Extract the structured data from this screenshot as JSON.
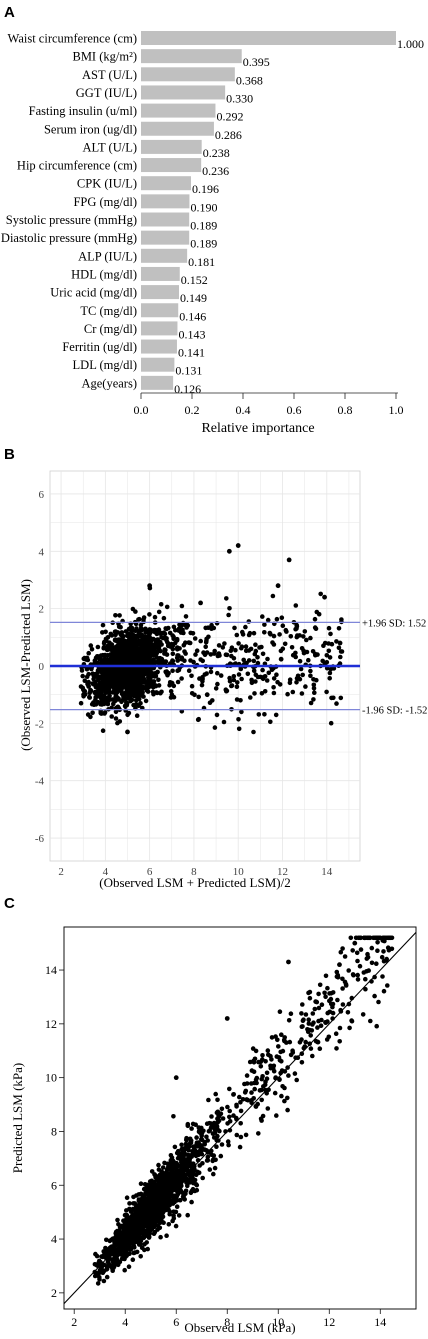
{
  "panels": {
    "a": {
      "letter": "A"
    },
    "b": {
      "letter": "B"
    },
    "c": {
      "letter": "C"
    }
  },
  "colors": {
    "bar": "#c0c0c0",
    "point": "#000000",
    "mean_line": "#1f2fd6",
    "sd_line": "#7f86d8",
    "grid": "#e6e6e6"
  },
  "chart_data": [
    {
      "panel": "A",
      "type": "bar",
      "orientation": "horizontal",
      "title": "",
      "xlabel": "Relative importance",
      "ylabel": "",
      "xlim": [
        0.0,
        1.0
      ],
      "xticks": [
        "0.0",
        "0.2",
        "0.4",
        "0.6",
        "0.8",
        "1.0"
      ],
      "categories": [
        "Waist circumference (cm)",
        "BMI (kg/m²)",
        "AST (U/L)",
        "GGT (IU/L)",
        "Fasting insulin (u/ml)",
        "Serum iron (ug/dl)",
        "ALT (U/L)",
        "Hip circumference (cm)",
        "CPK (IU/L)",
        "FPG (mg/dl)",
        "Systolic pressure (mmHg)",
        "Diastolic pressure (mmHg)",
        "ALP (IU/L)",
        "HDL (mg/dl)",
        "Uric acid (mg/dl)",
        "TC (mg/dl)",
        "Cr (mg/dl)",
        "Ferritin (ug/dl)",
        "LDL (mg/dl)",
        "Age(years)"
      ],
      "values": [
        1.0,
        0.395,
        0.368,
        0.33,
        0.292,
        0.286,
        0.238,
        0.236,
        0.196,
        0.19,
        0.189,
        0.189,
        0.181,
        0.152,
        0.149,
        0.146,
        0.143,
        0.141,
        0.131,
        0.126
      ],
      "value_labels": [
        "1.000",
        "0.395",
        "0.368",
        "0.330",
        "0.292",
        "0.286",
        "0.238",
        "0.236",
        "0.196",
        "0.190",
        "0.189",
        "0.189",
        "0.181",
        "0.152",
        "0.149",
        "0.146",
        "0.143",
        "0.141",
        "0.131",
        "0.126"
      ]
    },
    {
      "panel": "B",
      "type": "scatter",
      "subtype": "bland-altman",
      "xlabel": "(Observed LSM + Predicted LSM)/2",
      "ylabel": "(Observed LSM-Predicted LSM)",
      "xlim": [
        1.5,
        15.5
      ],
      "ylim": [
        -6.8,
        6.8
      ],
      "xticks": [
        "2",
        "4",
        "6",
        "8",
        "10",
        "12",
        "14"
      ],
      "yticks": [
        "6",
        "4",
        "2",
        "0",
        "-2",
        "-4",
        "-6"
      ],
      "grid": true,
      "mean_line": 0.0,
      "limits": [
        {
          "value": 1.52,
          "label": "+1.96 SD: 1.52"
        },
        {
          "value": -1.52,
          "label": "-1.96 SD: -1.52"
        }
      ],
      "point_summary": "dense cloud centred near (5, 0), spreading to x≈15; ~2000 points",
      "outliers": [
        [
          10.0,
          4.2
        ],
        [
          9.6,
          4.0
        ],
        [
          12.3,
          3.7
        ],
        [
          6.0,
          2.8
        ],
        [
          11.8,
          2.8
        ],
        [
          13.9,
          2.4
        ],
        [
          8.3,
          2.2
        ],
        [
          14.6,
          0.8
        ],
        [
          8.6,
          -1.0
        ],
        [
          5.0,
          -2.3
        ]
      ]
    },
    {
      "panel": "C",
      "type": "scatter",
      "xlabel": "Observed LSM (kPa)",
      "ylabel": "Predicted LSM (kPa)",
      "xlim": [
        1.6,
        15.4
      ],
      "ylim": [
        1.4,
        15.6
      ],
      "xticks": [
        "2",
        "4",
        "6",
        "8",
        "10",
        "12",
        "14"
      ],
      "yticks": [
        "2",
        "4",
        "6",
        "8",
        "10",
        "12",
        "14"
      ],
      "reference_line": "y = x",
      "point_summary": "dense cloud along identity line from (3,3) to (14.5,15.1); ~2000 points",
      "outliers": [
        [
          10.4,
          14.3
        ],
        [
          8.0,
          12.2
        ],
        [
          14.1,
          15.1
        ],
        [
          13.0,
          15.0
        ],
        [
          12.4,
          14.2
        ],
        [
          6.0,
          10.0
        ]
      ]
    }
  ]
}
